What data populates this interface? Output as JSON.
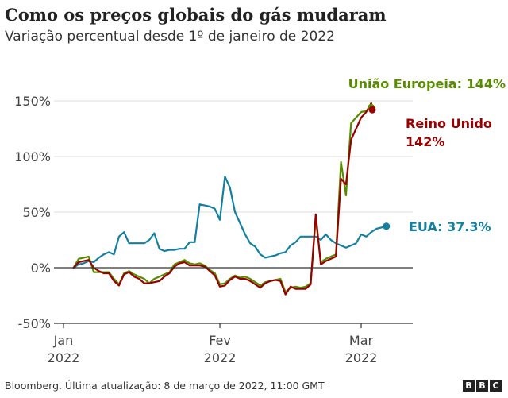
{
  "header": {
    "title": "Como os preços globais do gás mudaram",
    "subtitle": "Variação percentual desde 1º de janeiro de 2022"
  },
  "footer": {
    "source": "Bloomberg. Última atualização: 8 de março de 2022, 11:00 GMT",
    "logo": [
      "B",
      "B",
      "C"
    ]
  },
  "chart_data": {
    "type": "line",
    "title": "Como os preços globais do gás mudaram",
    "subtitle": "Variação percentual desde 1º de janeiro de 2022",
    "xlabel": "",
    "ylabel": "",
    "x_unit": "days since Jan 1 2022",
    "xlim": [
      -2,
      66
    ],
    "ylim": [
      -50,
      165
    ],
    "yticks": [
      -50,
      0,
      50,
      100,
      150
    ],
    "ytick_labels": [
      "-50%",
      "0%",
      "50%",
      "100%",
      "150%"
    ],
    "xticks": [
      0,
      31,
      59
    ],
    "xtick_labels": [
      [
        "Jan",
        "2022"
      ],
      [
        "Fev",
        "2022"
      ],
      [
        "Mar",
        "2022"
      ]
    ],
    "grid": "horizontal",
    "series": [
      {
        "name": "EUA",
        "color": "#1380a1",
        "end_label": "EUA: 37.3%",
        "points": [
          [
            2,
            0
          ],
          [
            3,
            3
          ],
          [
            4,
            4
          ],
          [
            5,
            6
          ],
          [
            6,
            5
          ],
          [
            7,
            9
          ],
          [
            8,
            12
          ],
          [
            9,
            14
          ],
          [
            10,
            12
          ],
          [
            11,
            28
          ],
          [
            12,
            32
          ],
          [
            13,
            22
          ],
          [
            14,
            22
          ],
          [
            15,
            22
          ],
          [
            16,
            22
          ],
          [
            17,
            25
          ],
          [
            18,
            31
          ],
          [
            19,
            17
          ],
          [
            20,
            15
          ],
          [
            21,
            16
          ],
          [
            22,
            16
          ],
          [
            23,
            17
          ],
          [
            24,
            17
          ],
          [
            25,
            23
          ],
          [
            26,
            23
          ],
          [
            27,
            57
          ],
          [
            28,
            56
          ],
          [
            29,
            55
          ],
          [
            30,
            53
          ],
          [
            31,
            43
          ],
          [
            32,
            82
          ],
          [
            33,
            72
          ],
          [
            34,
            50
          ],
          [
            35,
            40
          ],
          [
            36,
            30
          ],
          [
            37,
            22
          ],
          [
            38,
            19
          ],
          [
            39,
            12
          ],
          [
            40,
            9
          ],
          [
            41,
            10
          ],
          [
            42,
            11
          ],
          [
            43,
            13
          ],
          [
            44,
            14
          ],
          [
            45,
            20
          ],
          [
            46,
            23
          ],
          [
            47,
            28
          ],
          [
            48,
            28
          ],
          [
            49,
            28
          ],
          [
            50,
            28
          ],
          [
            51,
            25
          ],
          [
            52,
            30
          ],
          [
            53,
            25
          ],
          [
            54,
            22
          ],
          [
            55,
            20
          ],
          [
            56,
            18
          ],
          [
            57,
            20
          ],
          [
            58,
            22
          ],
          [
            59,
            30
          ],
          [
            60,
            28
          ],
          [
            61,
            32
          ],
          [
            62,
            35
          ],
          [
            64,
            37.3
          ]
        ]
      },
      {
        "name": "União Europeia",
        "color": "#588c00",
        "end_label": "União Europeia: 144%",
        "points": [
          [
            2,
            0
          ],
          [
            3,
            8
          ],
          [
            4,
            9
          ],
          [
            5,
            10
          ],
          [
            6,
            -4
          ],
          [
            7,
            -4
          ],
          [
            8,
            -4
          ],
          [
            9,
            -4
          ],
          [
            10,
            -10
          ],
          [
            11,
            -15
          ],
          [
            12,
            -5
          ],
          [
            13,
            -3
          ],
          [
            14,
            -6
          ],
          [
            15,
            -8
          ],
          [
            16,
            -10
          ],
          [
            17,
            -14
          ],
          [
            18,
            -10
          ],
          [
            19,
            -8
          ],
          [
            20,
            -6
          ],
          [
            21,
            -4
          ],
          [
            22,
            3
          ],
          [
            23,
            5
          ],
          [
            24,
            7
          ],
          [
            25,
            4
          ],
          [
            26,
            3
          ],
          [
            27,
            4
          ],
          [
            28,
            2
          ],
          [
            29,
            -2
          ],
          [
            30,
            -5
          ],
          [
            31,
            -15
          ],
          [
            32,
            -14
          ],
          [
            33,
            -10
          ],
          [
            34,
            -7
          ],
          [
            35,
            -9
          ],
          [
            36,
            -8
          ],
          [
            37,
            -10
          ],
          [
            38,
            -13
          ],
          [
            39,
            -16
          ],
          [
            40,
            -13
          ],
          [
            41,
            -12
          ],
          [
            42,
            -11
          ],
          [
            43,
            -10
          ],
          [
            44,
            -22
          ],
          [
            45,
            -18
          ],
          [
            46,
            -17
          ],
          [
            47,
            -18
          ],
          [
            48,
            -17
          ],
          [
            49,
            -14
          ],
          [
            50,
            44
          ],
          [
            51,
            5
          ],
          [
            52,
            8
          ],
          [
            53,
            10
          ],
          [
            54,
            12
          ],
          [
            55,
            95
          ],
          [
            56,
            65
          ],
          [
            57,
            130
          ],
          [
            58,
            135
          ],
          [
            59,
            140
          ],
          [
            60,
            141
          ],
          [
            61,
            144
          ]
        ]
      },
      {
        "name": "Reino Unido",
        "color": "#990000",
        "end_label": [
          "Reino Unido",
          "142%"
        ],
        "points": [
          [
            2,
            0
          ],
          [
            3,
            5
          ],
          [
            4,
            6
          ],
          [
            5,
            7
          ],
          [
            6,
            0
          ],
          [
            7,
            -3
          ],
          [
            8,
            -5
          ],
          [
            9,
            -5
          ],
          [
            10,
            -12
          ],
          [
            11,
            -16
          ],
          [
            12,
            -6
          ],
          [
            13,
            -4
          ],
          [
            14,
            -8
          ],
          [
            15,
            -10
          ],
          [
            16,
            -14
          ],
          [
            17,
            -14
          ],
          [
            18,
            -13
          ],
          [
            19,
            -12
          ],
          [
            20,
            -8
          ],
          [
            21,
            -5
          ],
          [
            22,
            1
          ],
          [
            23,
            4
          ],
          [
            24,
            5
          ],
          [
            25,
            2
          ],
          [
            26,
            2
          ],
          [
            27,
            2
          ],
          [
            28,
            1
          ],
          [
            29,
            -3
          ],
          [
            30,
            -7
          ],
          [
            31,
            -17
          ],
          [
            32,
            -16
          ],
          [
            33,
            -11
          ],
          [
            34,
            -8
          ],
          [
            35,
            -10
          ],
          [
            36,
            -10
          ],
          [
            37,
            -12
          ],
          [
            38,
            -15
          ],
          [
            39,
            -18
          ],
          [
            40,
            -14
          ],
          [
            41,
            -12
          ],
          [
            42,
            -11
          ],
          [
            43,
            -12
          ],
          [
            44,
            -24
          ],
          [
            45,
            -17
          ],
          [
            46,
            -19
          ],
          [
            47,
            -19
          ],
          [
            48,
            -19
          ],
          [
            49,
            -15
          ],
          [
            50,
            48
          ],
          [
            51,
            3
          ],
          [
            52,
            6
          ],
          [
            53,
            8
          ],
          [
            54,
            10
          ],
          [
            55,
            80
          ],
          [
            56,
            75
          ],
          [
            57,
            115
          ],
          [
            58,
            125
          ],
          [
            59,
            135
          ],
          [
            60,
            140
          ],
          [
            61,
            148
          ],
          [
            61.2,
            142
          ]
        ]
      }
    ]
  }
}
